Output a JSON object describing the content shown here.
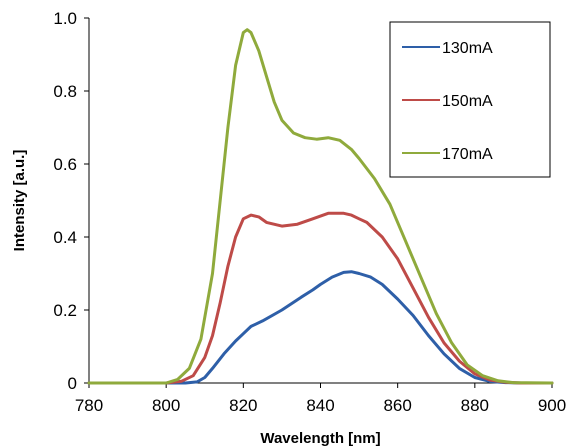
{
  "chart_data": {
    "type": "line",
    "xlabel": "Wavelength [nm]",
    "ylabel": "Intensity [a.u.]",
    "xlim": [
      780,
      900
    ],
    "ylim": [
      0,
      1.0
    ],
    "xticks": [
      780,
      800,
      820,
      840,
      860,
      880,
      900
    ],
    "xtick_labels": [
      "780",
      "800",
      "820",
      "840",
      "860",
      "880",
      "900"
    ],
    "yticks": [
      0,
      0.2,
      0.4,
      0.6,
      0.8,
      1.0
    ],
    "ytick_labels": [
      "0",
      "0.2",
      "0.4",
      "0.6",
      "0.8",
      "1.0"
    ],
    "grid": false,
    "legend_position": "top-right",
    "series": [
      {
        "name": "130mA",
        "color": "#2e5fa8",
        "x": [
          780,
          800,
          805,
          808,
          810,
          812,
          815,
          818,
          820,
          822,
          825,
          830,
          835,
          838,
          840,
          843,
          846,
          848,
          850,
          853,
          856,
          860,
          864,
          868,
          872,
          876,
          880,
          884,
          888,
          892,
          900
        ],
        "y": [
          0,
          0,
          0,
          0.003,
          0.015,
          0.04,
          0.08,
          0.115,
          0.135,
          0.155,
          0.17,
          0.2,
          0.235,
          0.255,
          0.27,
          0.29,
          0.303,
          0.305,
          0.3,
          0.29,
          0.27,
          0.23,
          0.185,
          0.13,
          0.08,
          0.04,
          0.015,
          0.004,
          0.001,
          0,
          0
        ]
      },
      {
        "name": "150mA",
        "color": "#be4b48",
        "x": [
          780,
          800,
          804,
          807,
          810,
          812,
          814,
          816,
          818,
          820,
          822,
          824,
          826,
          830,
          834,
          838,
          842,
          846,
          848,
          850,
          852,
          856,
          860,
          864,
          868,
          872,
          876,
          880,
          884,
          888,
          892,
          900
        ],
        "y": [
          0,
          0,
          0.005,
          0.02,
          0.07,
          0.13,
          0.22,
          0.32,
          0.4,
          0.45,
          0.46,
          0.455,
          0.44,
          0.43,
          0.435,
          0.45,
          0.465,
          0.465,
          0.46,
          0.45,
          0.44,
          0.4,
          0.34,
          0.26,
          0.18,
          0.11,
          0.06,
          0.025,
          0.008,
          0.002,
          0,
          0
        ]
      },
      {
        "name": "170mA",
        "color": "#8faa3c",
        "x": [
          780,
          800,
          803,
          806,
          809,
          812,
          814,
          816,
          818,
          820,
          821,
          822,
          824,
          826,
          828,
          830,
          833,
          836,
          839,
          842,
          845,
          848,
          850,
          854,
          858,
          862,
          866,
          870,
          874,
          878,
          882,
          886,
          890,
          900
        ],
        "y": [
          0,
          0,
          0.01,
          0.04,
          0.12,
          0.3,
          0.5,
          0.7,
          0.87,
          0.96,
          0.968,
          0.96,
          0.91,
          0.84,
          0.77,
          0.72,
          0.685,
          0.672,
          0.668,
          0.672,
          0.665,
          0.64,
          0.615,
          0.56,
          0.49,
          0.39,
          0.29,
          0.19,
          0.11,
          0.05,
          0.02,
          0.006,
          0.001,
          0
        ]
      }
    ]
  }
}
